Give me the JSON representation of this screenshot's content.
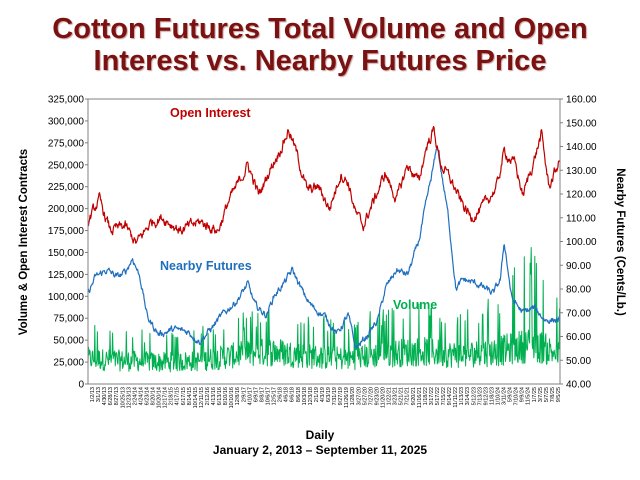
{
  "title_line1": "Cotton Futures Total Volume and Open",
  "title_line2": "Interest vs. Nearby Futures Price",
  "footer_line1": "Daily",
  "footer_line2": "January 2, 2013 – September 11, 2025",
  "chart_data": {
    "type": "line",
    "ylabel_left": "Volume & Open Interest Contracts",
    "ylabel_right": "Nearby Futures (Cents/Lb.)",
    "ylim_left": [
      0,
      325000
    ],
    "ylim_right": [
      40,
      160
    ],
    "yticks_left": [
      "0",
      "25,000",
      "50,000",
      "75,000",
      "100,000",
      "125,000",
      "150,000",
      "175,000",
      "200,000",
      "225,000",
      "250,000",
      "275,000",
      "300,000",
      "325,000"
    ],
    "yticks_right": [
      "40.00",
      "50.00",
      "60.00",
      "70.00",
      "80.00",
      "90.00",
      "100.00",
      "110.00",
      "120.00",
      "130.00",
      "140.00",
      "150.00",
      "160.00"
    ],
    "x_range": [
      "2013-01-02",
      "2025-09-11"
    ],
    "x_tick_labels": [
      "1/2/13",
      "3/1/13",
      "4/30/13",
      "6/28/13",
      "8/27/13",
      "10/25/13",
      "12/23/13",
      "2/24/14",
      "4/24/14",
      "6/23/14",
      "8/20/14",
      "10/20/14",
      "12/17/14",
      "2/18/15",
      "4/17/15",
      "6/17/15",
      "8/14/15",
      "10/14/15",
      "12/11/15",
      "2/12/16",
      "4/13/16",
      "6/13/16",
      "8/10/16",
      "10/10/16",
      "12/8/16",
      "2/9/17",
      "4/10/17",
      "6/9/17",
      "8/8/17",
      "10/6/17",
      "12/5/17",
      "2/6/18",
      "4/6/18",
      "6/6/18",
      "8/6/18",
      "10/3/18",
      "12/3/18",
      "2/1/19",
      "4/3/19",
      "6/3/19",
      "7/31/19",
      "9/27/19",
      "11/26/19",
      "1/28/20",
      "3/27/20",
      "5/27/20",
      "7/27/20",
      "9/23/20",
      "11/20/20",
      "1/22/21",
      "3/23/21",
      "5/21/21",
      "7/21/21",
      "9/20/21",
      "11/16/21",
      "1/18/22",
      "3/17/22",
      "5/17/22",
      "7/15/22",
      "9/14/22",
      "11/11/22",
      "1/13/23",
      "3/14/23",
      "5/12/23",
      "7/13/23",
      "9/12/23",
      "11/8/23",
      "1/10/24",
      "3/11/24",
      "5/9/24",
      "7/10/24",
      "9/9/24",
      "11/5/24",
      "1/7/25",
      "3/7/25",
      "5/7/25",
      "7/8/25",
      "9/5/25"
    ],
    "series": [
      {
        "name": "Open Interest",
        "axis": "left",
        "color": "#c00000",
        "x_year": [
          2013.0,
          2013.3,
          2013.6,
          2014.0,
          2014.3,
          2014.7,
          2015.0,
          2015.5,
          2016.0,
          2016.5,
          2016.8,
          2017.0,
          2017.3,
          2017.6,
          2017.9,
          2018.2,
          2018.4,
          2018.6,
          2018.9,
          2019.2,
          2019.5,
          2019.8,
          2020.0,
          2020.2,
          2020.4,
          2020.7,
          2021.0,
          2021.3,
          2021.6,
          2021.9,
          2022.1,
          2022.3,
          2022.5,
          2022.8,
          2023.0,
          2023.3,
          2023.6,
          2024.0,
          2024.2,
          2024.5,
          2024.7,
          2025.0,
          2025.2,
          2025.4,
          2025.7
        ],
        "values": [
          185000,
          210000,
          175000,
          180000,
          160000,
          185000,
          190000,
          175000,
          185000,
          175000,
          210000,
          225000,
          250000,
          215000,
          245000,
          270000,
          290000,
          265000,
          220000,
          225000,
          200000,
          240000,
          230000,
          195000,
          180000,
          210000,
          240000,
          210000,
          250000,
          230000,
          270000,
          290000,
          250000,
          230000,
          210000,
          190000,
          200000,
          225000,
          265000,
          250000,
          215000,
          255000,
          285000,
          225000,
          255000
        ]
      },
      {
        "name": "Nearby Futures",
        "axis": "right",
        "color": "#1f6fbf",
        "x_year": [
          2013.0,
          2013.2,
          2013.5,
          2013.8,
          2014.0,
          2014.2,
          2014.4,
          2014.6,
          2014.9,
          2015.3,
          2015.7,
          2016.0,
          2016.3,
          2016.5,
          2016.8,
          2017.0,
          2017.3,
          2017.5,
          2017.8,
          2018.0,
          2018.3,
          2018.5,
          2018.8,
          2019.0,
          2019.4,
          2019.7,
          2020.0,
          2020.2,
          2020.5,
          2020.8,
          2021.0,
          2021.3,
          2021.6,
          2021.9,
          2022.1,
          2022.3,
          2022.4,
          2022.7,
          2022.9,
          2023.1,
          2023.5,
          2023.9,
          2024.1,
          2024.2,
          2024.4,
          2024.7,
          2025.0,
          2025.3,
          2025.7
        ],
        "values": [
          78,
          85,
          88,
          85,
          87,
          93,
          85,
          68,
          61,
          63,
          62,
          58,
          63,
          67,
          72,
          75,
          82,
          73,
          69,
          77,
          83,
          88,
          78,
          73,
          68,
          61,
          69,
          55,
          60,
          67,
          80,
          88,
          86,
          100,
          116,
          132,
          140,
          110,
          80,
          84,
          82,
          78,
          84,
          100,
          76,
          70,
          72,
          67,
          67
        ]
      },
      {
        "name": "Volume",
        "axis": "left",
        "color": "#00b050",
        "x_year": [
          2013.0,
          2014.0,
          2015.0,
          2016.0,
          2017.0,
          2018.0,
          2019.0,
          2020.0,
          2021.0,
          2022.0,
          2023.0,
          2024.0,
          2025.0,
          2025.7
        ],
        "values": [
          35000,
          32000,
          30000,
          32000,
          40000,
          45000,
          38000,
          35000,
          42000,
          45000,
          40000,
          45000,
          55000,
          40000
        ],
        "peak_values": [
          70000,
          65000,
          60000,
          65000,
          80000,
          90000,
          80000,
          75000,
          90000,
          95000,
          85000,
          105000,
          170000,
          90000
        ]
      }
    ]
  }
}
